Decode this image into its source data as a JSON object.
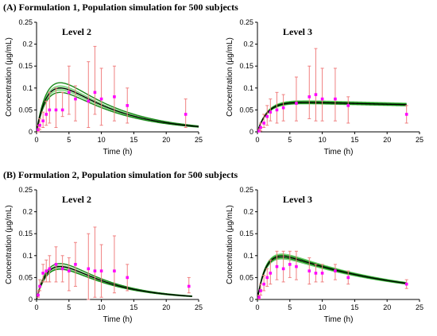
{
  "sections": [
    {
      "title": "(A) Formulation 1, Population simulation for 500 subjects"
    },
    {
      "title": "(B) Formulation 2, Population simulation for 500 subjects"
    }
  ],
  "colors": {
    "median": "#000000",
    "percentile": "#1a8a1a",
    "band": "#6fd16f",
    "observed": "#ff00ff",
    "error": "#f08080"
  },
  "chart_data": [
    {
      "type": "line",
      "title": "Level 2",
      "xlabel": "Time (h)",
      "ylabel": "Concentration (µg/mL)",
      "xlim": [
        0,
        25
      ],
      "ylim": [
        0,
        0.25
      ],
      "xticks": [
        0,
        5,
        10,
        15,
        20,
        25
      ],
      "yticks": [
        0,
        0.05,
        0.1,
        0.15,
        0.2,
        0.25
      ],
      "ytick_labels": [
        "0",
        "0.05",
        "0.1",
        "0.15",
        "0.2",
        "0.25"
      ],
      "sim": {
        "ka": 0.55,
        "ke": 0.11,
        "scale": 0.1,
        "band_upper": 1.05,
        "band_lower": 0.95,
        "p_upper": 1.12,
        "p_lower": 0.9,
        "x_end": 25
      },
      "observed": {
        "x": [
          0.25,
          0.5,
          1,
          1.5,
          2,
          3,
          4,
          5,
          6,
          8,
          9,
          10,
          12,
          14,
          23
        ],
        "y": [
          0.005,
          0.015,
          0.025,
          0.04,
          0.05,
          0.05,
          0.05,
          0.09,
          0.075,
          0.07,
          0.09,
          0.075,
          0.08,
          0.06,
          0.04
        ],
        "yerr_low": [
          0.005,
          0.01,
          0.015,
          0.025,
          0.03,
          0.04,
          0.015,
          0.05,
          0.05,
          0.06,
          0.05,
          0.06,
          0.055,
          0.04,
          0.03
        ],
        "yerr_high": [
          0.01,
          0.015,
          0.02,
          0.03,
          0.04,
          0.05,
          0.04,
          0.06,
          0.03,
          0.09,
          0.105,
          0.07,
          0.07,
          0.04,
          0.035
        ]
      }
    },
    {
      "type": "line",
      "title": "Level 3",
      "xlabel": "Time (h)",
      "ylabel": "Concentration (µg/mL)",
      "xlim": [
        0,
        25
      ],
      "ylim": [
        0,
        0.25
      ],
      "xticks": [
        0,
        5,
        10,
        15,
        20,
        25
      ],
      "yticks": [
        0,
        0.05,
        0.1,
        0.15,
        0.2,
        0.25
      ],
      "ytick_labels": [
        "0",
        "0.05",
        "0.1",
        "0.15",
        "0.2",
        "0.25"
      ],
      "sim": {
        "ka": 0.65,
        "ke": 0.0055,
        "scale": 0.067,
        "band_upper": 1.06,
        "band_lower": 0.95,
        "p_upper": 1.03,
        "p_lower": 0.97,
        "x_end": 23
      },
      "observed": {
        "x": [
          0.25,
          0.5,
          1,
          1.5,
          2,
          3,
          4,
          6,
          8,
          9,
          10,
          12,
          14,
          23
        ],
        "y": [
          0.002,
          0.01,
          0.02,
          0.035,
          0.045,
          0.05,
          0.055,
          0.065,
          0.08,
          0.085,
          0.075,
          0.075,
          0.06,
          0.04
        ],
        "yerr_low": [
          0.002,
          0.008,
          0.01,
          0.02,
          0.02,
          0.03,
          0.03,
          0.04,
          0.05,
          0.06,
          0.05,
          0.05,
          0.04,
          0.02
        ],
        "yerr_high": [
          0.005,
          0.01,
          0.02,
          0.025,
          0.03,
          0.04,
          0.03,
          0.06,
          0.07,
          0.105,
          0.07,
          0.07,
          0.02,
          0.02
        ]
      }
    },
    {
      "type": "line",
      "title": "Level 2",
      "xlabel": "Time (h)",
      "ylabel": "Concentration (µg/mL)",
      "xlim": [
        0,
        25
      ],
      "ylim": [
        0,
        0.25
      ],
      "xticks": [
        0,
        5,
        10,
        15,
        20,
        25
      ],
      "yticks": [
        0,
        0.05,
        0.1,
        0.15,
        0.2,
        0.25
      ],
      "ytick_labels": [
        "0",
        "0.05",
        "0.1",
        "0.15",
        "0.2",
        "0.25"
      ],
      "sim": {
        "ka": 0.5,
        "ke": 0.13,
        "scale": 0.075,
        "band_upper": 1.03,
        "band_lower": 0.94,
        "p_upper": 1.09,
        "p_lower": 0.92,
        "x_end": 24
      },
      "observed": {
        "x": [
          0.25,
          0.5,
          1,
          1.5,
          2,
          3,
          4,
          5,
          6,
          8,
          9,
          10,
          12,
          14,
          23.5
        ],
        "y": [
          0.01,
          0.03,
          0.06,
          0.065,
          0.07,
          0.08,
          0.07,
          0.065,
          0.08,
          0.07,
          0.065,
          0.065,
          0.065,
          0.05,
          0.03
        ],
        "yerr_low": [
          0.005,
          0.01,
          0.02,
          0.025,
          0.03,
          0.04,
          0.03,
          0.045,
          0.05,
          0.07,
          0.06,
          0.06,
          0.05,
          0.03,
          0.015
        ],
        "yerr_high": [
          0.01,
          0.015,
          0.02,
          0.025,
          0.03,
          0.04,
          0.03,
          0.03,
          0.05,
          0.08,
          0.1,
          0.06,
          0.08,
          0.03,
          0.02
        ]
      }
    },
    {
      "type": "line",
      "title": "Level  3",
      "xlabel": "Time (h)",
      "ylabel": "Concentration (µg/mL)",
      "xlim": [
        0,
        25
      ],
      "ylim": [
        0,
        0.25
      ],
      "xticks": [
        0,
        5,
        10,
        15,
        20,
        25
      ],
      "yticks": [
        0,
        0.05,
        0.1,
        0.15,
        0.2,
        0.25
      ],
      "ytick_labels": [
        "0",
        "0.05",
        "0.1",
        "0.15",
        "0.2",
        "0.25"
      ],
      "sim": {
        "ka": 0.75,
        "ke": 0.055,
        "scale": 0.098,
        "band_upper": 1.06,
        "band_lower": 0.94,
        "p_upper": 1.03,
        "p_lower": 0.97,
        "x_end": 23
      },
      "observed": {
        "x": [
          0.25,
          0.5,
          1,
          1.5,
          2,
          3,
          4,
          5,
          6,
          8,
          9,
          10,
          12,
          14,
          23
        ],
        "y": [
          0.005,
          0.02,
          0.035,
          0.05,
          0.06,
          0.075,
          0.07,
          0.08,
          0.075,
          0.065,
          0.06,
          0.06,
          0.065,
          0.05,
          0.035
        ],
        "yerr_low": [
          0.004,
          0.01,
          0.015,
          0.02,
          0.025,
          0.03,
          0.03,
          0.03,
          0.03,
          0.03,
          0.02,
          0.02,
          0.02,
          0.015,
          0.01
        ],
        "yerr_high": [
          0.005,
          0.015,
          0.02,
          0.02,
          0.03,
          0.035,
          0.04,
          0.03,
          0.035,
          0.03,
          0.02,
          0.02,
          0.015,
          0.015,
          0.01
        ]
      }
    }
  ]
}
